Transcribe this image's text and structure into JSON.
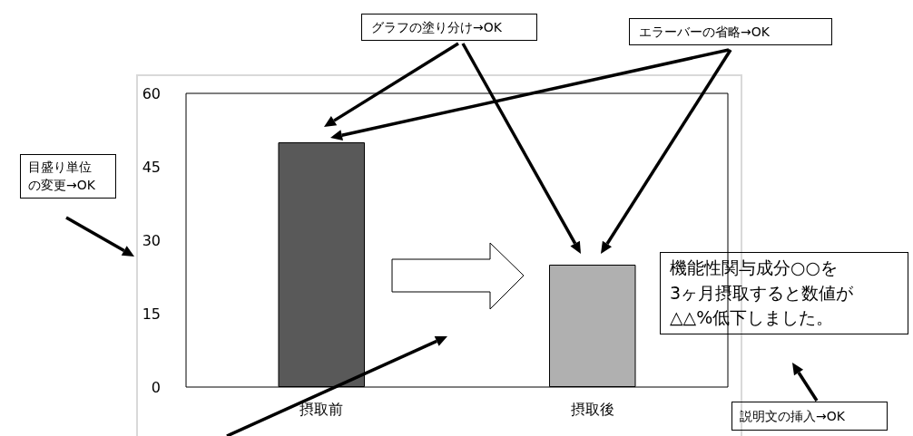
{
  "chart_data": {
    "type": "bar",
    "categories": [
      "摂取前",
      "摂取後"
    ],
    "values": [
      50,
      25
    ],
    "colors": [
      "#595959",
      "#b0b0b0"
    ],
    "ylim": [
      0,
      60
    ],
    "yticks": [
      0,
      15,
      30,
      45,
      60
    ],
    "grid": false,
    "annotations": [
      "グラフの塗り分け→OK",
      "エラーバーの省略→OK",
      "目盛り単位の変更→OK",
      "機能性関与成分○○を3ヶ月摂取すると数値が△△%低下しました。",
      "説明文の挿入→OK"
    ]
  }
}
